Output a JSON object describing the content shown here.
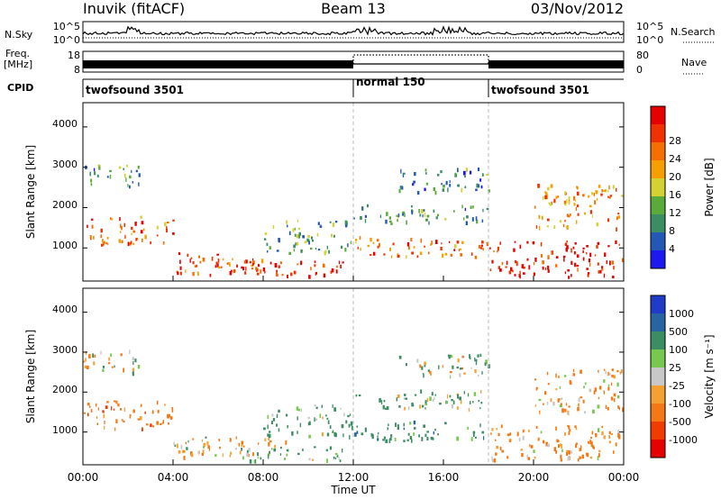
{
  "header": {
    "station": "Inuvik (fitACF)",
    "beam": "Beam 13",
    "date": "03/Nov/2012"
  },
  "noise_panel": {
    "label": "N.Sky",
    "y_ticks": [
      "10^5",
      "10^0"
    ],
    "y_ticks_right": [
      "10^5",
      "10^0"
    ],
    "right_label": "N.Search"
  },
  "freq_panel": {
    "label_line1": "Freq.",
    "label_line2": "[MHz]",
    "y_ticks": [
      "18",
      "8"
    ],
    "y_ticks_right": [
      "80",
      "0"
    ],
    "right_label": "Nave"
  },
  "cpid_panel": {
    "label": "CPID",
    "segments": [
      {
        "name": "twofsound 3501",
        "start_hour": 0,
        "end_hour": 12
      },
      {
        "name": "normal 150",
        "start_hour": 12,
        "end_hour": 18
      },
      {
        "name": "twofsound 3501",
        "start_hour": 18,
        "end_hour": 24
      }
    ]
  },
  "x_axis": {
    "label": "Time UT",
    "ticks": [
      "00:00",
      "04:00",
      "08:00",
      "12:00",
      "16:00",
      "20:00",
      "00:00"
    ]
  },
  "power_panel": {
    "ylabel": "Slant Range [km]",
    "y_ticks": [
      "1000",
      "2000",
      "3000",
      "4000"
    ],
    "colorbar_label": "Power [dB]",
    "colorbar_ticks": [
      "4",
      "8",
      "12",
      "16",
      "20",
      "24",
      "28"
    ],
    "colors": [
      "#1a1af0",
      "#2458b4",
      "#3c8c64",
      "#5aaa3c",
      "#d2d232",
      "#f5a000",
      "#f56e00",
      "#f03200",
      "#e60000"
    ]
  },
  "velocity_panel": {
    "ylabel": "Slant Range [km]",
    "y_ticks": [
      "1000",
      "2000",
      "3000",
      "4000"
    ],
    "colorbar_label": "Velocity [m s⁻¹]",
    "colorbar_ticks": [
      "1000",
      "500",
      "100",
      "25",
      "-25",
      "-100",
      "-500",
      "-1000"
    ],
    "colors": [
      "#1e3cc8",
      "#2864a0",
      "#3c8c64",
      "#78c850",
      "#c8c8c8",
      "#f5a032",
      "#f57814",
      "#f03c00",
      "#e60000"
    ]
  },
  "chart_data": {
    "type": "heatmap",
    "title": "Inuvik (fitACF) Beam 13 03/Nov/2012",
    "xlabel": "Time UT",
    "ylabel": "Slant Range [km]",
    "xlim": [
      0,
      24
    ],
    "ylim": [
      180,
      4600
    ],
    "x_ticks": [
      "00:00",
      "04:00",
      "08:00",
      "12:00",
      "16:00",
      "20:00",
      "00:00"
    ],
    "y_ticks": [
      1000,
      2000,
      3000,
      4000
    ],
    "panels": [
      {
        "name": "Power [dB]",
        "colorbar_range": [
          0,
          30
        ],
        "colorbar_ticks": [
          4,
          8,
          12,
          16,
          20,
          24,
          28
        ]
      },
      {
        "name": "Velocity [m s⁻¹]",
        "colorbar_ticks": [
          1000,
          500,
          100,
          25,
          -25,
          -100,
          -500,
          -1000
        ]
      }
    ],
    "scatter_regions": [
      {
        "t0": 0.0,
        "t1": 4.0,
        "r0": 1100,
        "r1": 1800,
        "power": 22,
        "velocity": -300
      },
      {
        "t0": 0.0,
        "t1": 2.5,
        "r0": 2500,
        "r1": 3100,
        "power": 9,
        "velocity": 40
      },
      {
        "t0": 4.0,
        "t1": 9.0,
        "r0": 350,
        "r1": 900,
        "power": 24,
        "velocity": -60
      },
      {
        "t0": 6.5,
        "t1": 11.5,
        "r0": 300,
        "r1": 700,
        "power": 27,
        "velocity": 150
      },
      {
        "t0": 8.0,
        "t1": 12.0,
        "r0": 900,
        "r1": 1700,
        "power": 10,
        "velocity": 200
      },
      {
        "t0": 12.0,
        "t1": 18.0,
        "r0": 800,
        "r1": 1300,
        "power": 22,
        "velocity": 300
      },
      {
        "t0": 12.0,
        "t1": 18.0,
        "r0": 1600,
        "r1": 2100,
        "power": 9,
        "velocity": 150
      },
      {
        "t0": 14.0,
        "t1": 18.0,
        "r0": 2400,
        "r1": 3000,
        "power": 8,
        "velocity": 100
      },
      {
        "t0": 18.0,
        "t1": 24.0,
        "r0": 300,
        "r1": 1200,
        "power": 28,
        "velocity": -200
      },
      {
        "t0": 20.0,
        "t1": 24.0,
        "r0": 1500,
        "r1": 2600,
        "power": 20,
        "velocity": -150
      }
    ]
  }
}
